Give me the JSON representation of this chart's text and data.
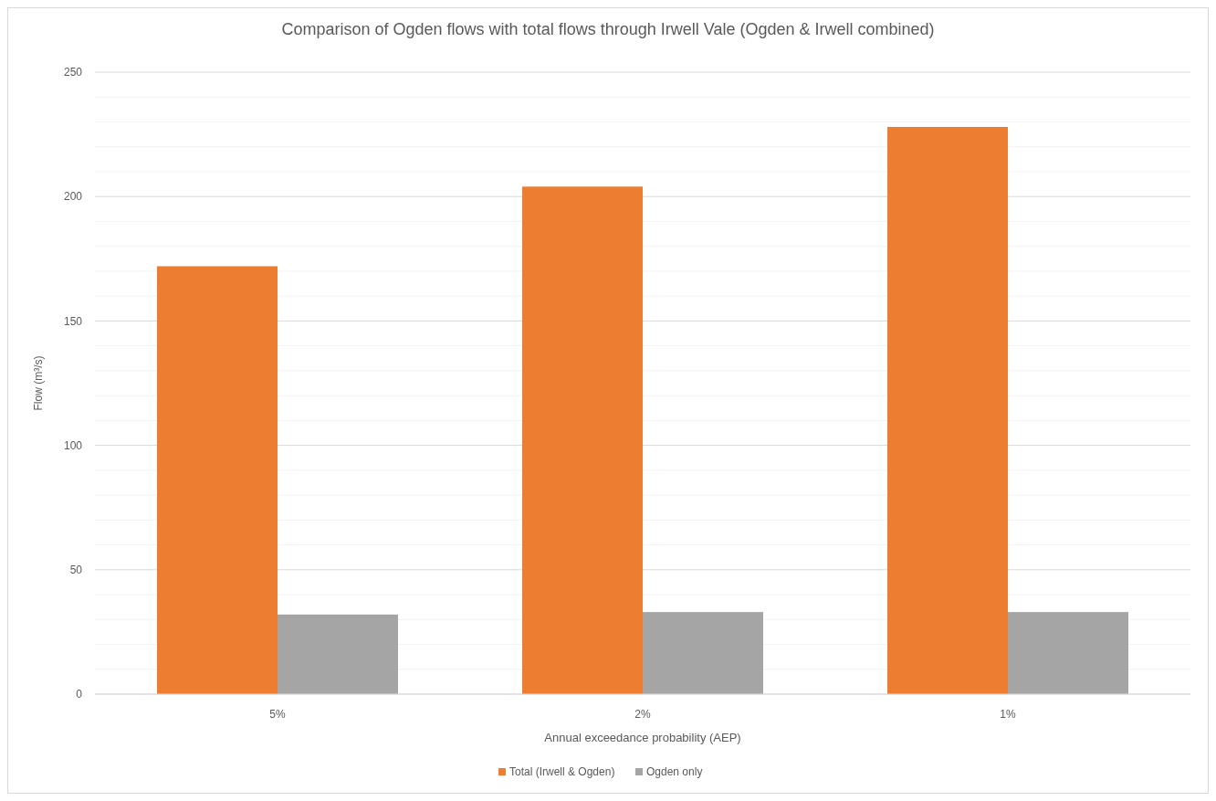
{
  "chart_data": {
    "type": "bar",
    "title": "Comparison of Ogden flows with total flows through Irwell Vale (Ogden & Irwell combined)",
    "xlabel": "Annual exceedance probability (AEP)",
    "ylabel": "Flow (m³/s)",
    "categories": [
      "5%",
      "2%",
      "1%"
    ],
    "series": [
      {
        "name": "Total (Irwell & Ogden)",
        "color": "#ed7d31",
        "values": [
          172,
          204,
          228
        ]
      },
      {
        "name": "Ogden only",
        "color": "#a5a5a5",
        "values": [
          32,
          33,
          33
        ]
      }
    ],
    "ylim": [
      0,
      250
    ],
    "yticks": [
      0,
      {
        "value": 10,
        "label": null
      },
      {
        "value": 20,
        "label": null
      },
      {
        "value": 30,
        "label": null
      },
      {
        "value": 40,
        "label": null
      },
      50,
      {
        "value": 60,
        "label": null
      },
      {
        "value": 70,
        "label": null
      },
      {
        "value": 80,
        "label": null
      },
      {
        "value": 90,
        "label": null
      },
      100,
      {
        "value": 110,
        "label": null
      },
      {
        "value": 120,
        "label": null
      },
      {
        "value": 130,
        "label": null
      },
      {
        "value": 140,
        "label": null
      },
      150,
      {
        "value": 160,
        "label": null
      },
      {
        "value": 170,
        "label": null
      },
      {
        "value": 180,
        "label": null
      },
      {
        "value": 190,
        "label": null
      },
      200,
      {
        "value": 210,
        "label": null
      },
      {
        "value": 220,
        "label": null
      },
      {
        "value": 230,
        "label": null
      },
      {
        "value": 240,
        "label": null
      },
      250
    ],
    "grid": "y",
    "legend": "bottom"
  }
}
